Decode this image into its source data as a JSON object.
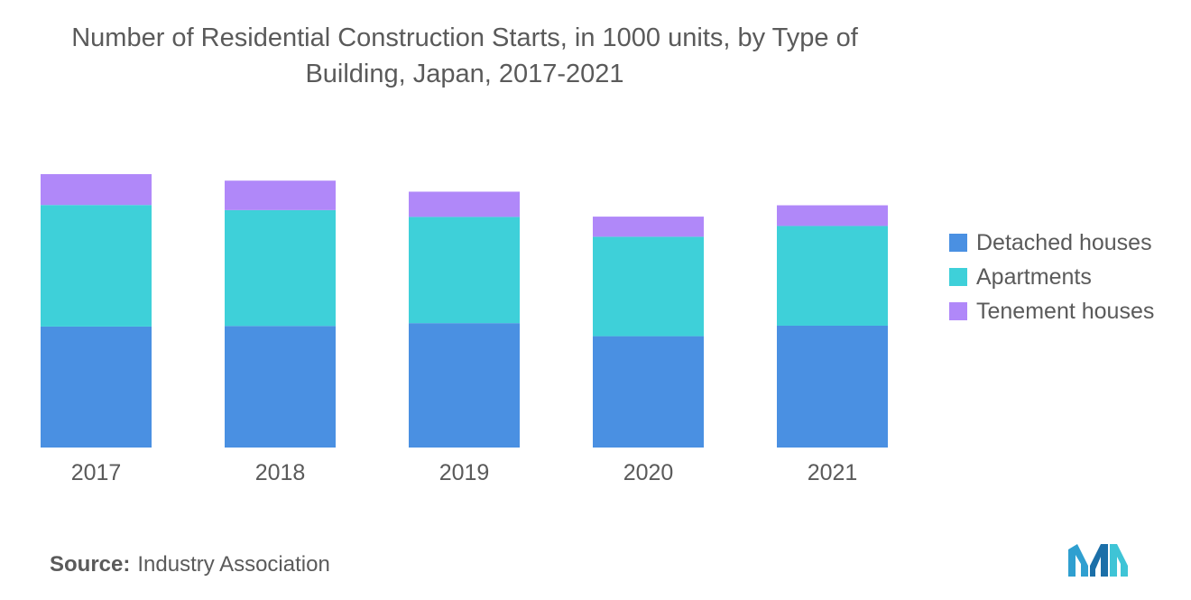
{
  "chart_data": {
    "type": "bar",
    "stacked": true,
    "title": "Number of Residential Construction Starts, in 1000 units, by Type of Building, Japan, 2017-2021",
    "categories": [
      "2017",
      "2018",
      "2019",
      "2020",
      "2021"
    ],
    "series": [
      {
        "name": "Detached houses",
        "color": "#4a90e2",
        "values": [
          427,
          429,
          439,
          393,
          430
        ]
      },
      {
        "name": "Apartments",
        "color": "#3ed0d9",
        "values": [
          429,
          409,
          375,
          351,
          352
        ]
      },
      {
        "name": "Tenement houses",
        "color": "#b088f9",
        "values": [
          109,
          104,
          89,
          71,
          73
        ]
      }
    ],
    "ylim": [
      0,
      1000
    ],
    "grid": false,
    "legend_position": "right"
  },
  "source": {
    "label": "Source:",
    "text": "Industry Association"
  },
  "logo": {
    "icon": "mordor-logo-icon",
    "color": "#2f9fd0"
  }
}
